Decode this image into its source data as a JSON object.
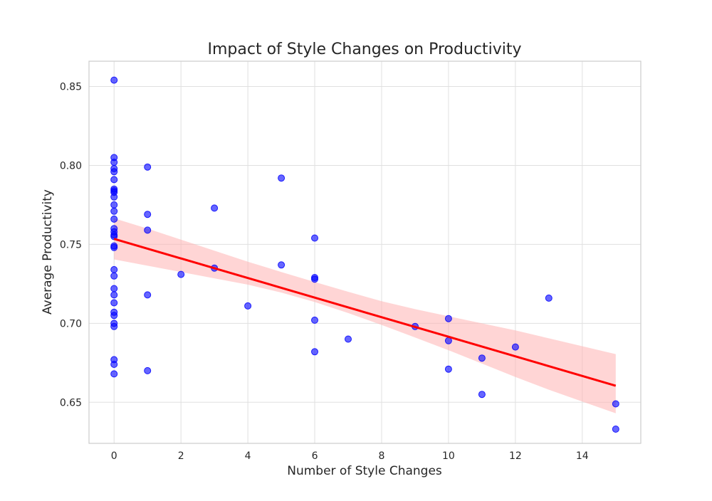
{
  "chart_data": {
    "type": "scatter",
    "title": "Impact of Style Changes on Productivity",
    "xlabel": "Number of Style Changes",
    "ylabel": "Average Productivity",
    "xlim": [
      -0.75,
      15.75
    ],
    "ylim": [
      0.624,
      0.866
    ],
    "xticks": [
      0,
      2,
      4,
      6,
      8,
      10,
      12,
      14
    ],
    "yticks": [
      0.65,
      0.7,
      0.75,
      0.8,
      0.85
    ],
    "xtick_labels": [
      "0",
      "2",
      "4",
      "6",
      "8",
      "10",
      "12",
      "14"
    ],
    "ytick_labels": [
      "0.65",
      "0.70",
      "0.75",
      "0.80",
      "0.85"
    ],
    "grid": true,
    "colors": {
      "points": "#0000ff",
      "regression_line": "#ff0000",
      "confidence_band": "#ffb3b3",
      "grid": "#e0e0e0",
      "axes_border": "#cccccc"
    },
    "points": [
      {
        "x": 0,
        "y": 0.854
      },
      {
        "x": 0,
        "y": 0.805
      },
      {
        "x": 0,
        "y": 0.802
      },
      {
        "x": 0,
        "y": 0.798
      },
      {
        "x": 0,
        "y": 0.796
      },
      {
        "x": 0,
        "y": 0.791
      },
      {
        "x": 0,
        "y": 0.785
      },
      {
        "x": 0,
        "y": 0.784
      },
      {
        "x": 0,
        "y": 0.783
      },
      {
        "x": 0,
        "y": 0.78
      },
      {
        "x": 0,
        "y": 0.775
      },
      {
        "x": 0,
        "y": 0.771
      },
      {
        "x": 0,
        "y": 0.766
      },
      {
        "x": 0,
        "y": 0.76
      },
      {
        "x": 0,
        "y": 0.758
      },
      {
        "x": 0,
        "y": 0.756
      },
      {
        "x": 0,
        "y": 0.755
      },
      {
        "x": 0,
        "y": 0.749
      },
      {
        "x": 0,
        "y": 0.748
      },
      {
        "x": 0,
        "y": 0.734
      },
      {
        "x": 0,
        "y": 0.73
      },
      {
        "x": 0,
        "y": 0.722
      },
      {
        "x": 0,
        "y": 0.718
      },
      {
        "x": 0,
        "y": 0.713
      },
      {
        "x": 0,
        "y": 0.707
      },
      {
        "x": 0,
        "y": 0.705
      },
      {
        "x": 0,
        "y": 0.7
      },
      {
        "x": 0,
        "y": 0.698
      },
      {
        "x": 0,
        "y": 0.677
      },
      {
        "x": 0,
        "y": 0.674
      },
      {
        "x": 0,
        "y": 0.668
      },
      {
        "x": 1,
        "y": 0.799
      },
      {
        "x": 1,
        "y": 0.769
      },
      {
        "x": 1,
        "y": 0.759
      },
      {
        "x": 1,
        "y": 0.718
      },
      {
        "x": 1,
        "y": 0.67
      },
      {
        "x": 2,
        "y": 0.731
      },
      {
        "x": 3,
        "y": 0.773
      },
      {
        "x": 3,
        "y": 0.735
      },
      {
        "x": 4,
        "y": 0.711
      },
      {
        "x": 5,
        "y": 0.792
      },
      {
        "x": 5,
        "y": 0.737
      },
      {
        "x": 6,
        "y": 0.754
      },
      {
        "x": 6,
        "y": 0.729
      },
      {
        "x": 6,
        "y": 0.728
      },
      {
        "x": 6,
        "y": 0.702
      },
      {
        "x": 6,
        "y": 0.682
      },
      {
        "x": 7,
        "y": 0.69
      },
      {
        "x": 9,
        "y": 0.698
      },
      {
        "x": 10,
        "y": 0.703
      },
      {
        "x": 10,
        "y": 0.689
      },
      {
        "x": 10,
        "y": 0.671
      },
      {
        "x": 11,
        "y": 0.678
      },
      {
        "x": 11,
        "y": 0.655
      },
      {
        "x": 12,
        "y": 0.685
      },
      {
        "x": 13,
        "y": 0.716
      },
      {
        "x": 15,
        "y": 0.649
      },
      {
        "x": 15,
        "y": 0.633
      }
    ],
    "regression": {
      "x": [
        0,
        15
      ],
      "y": [
        0.7535,
        0.6605
      ]
    },
    "confidence_band": {
      "x": [
        0,
        1,
        2,
        3,
        4,
        5,
        6,
        7,
        8,
        9,
        10,
        11,
        12,
        13,
        14,
        15
      ],
      "upper": [
        0.7665,
        0.76,
        0.753,
        0.746,
        0.739,
        0.7325,
        0.7262,
        0.72,
        0.714,
        0.709,
        0.7045,
        0.7,
        0.6955,
        0.6905,
        0.6855,
        0.6805
      ],
      "lower": [
        0.7405,
        0.7365,
        0.7325,
        0.7285,
        0.7245,
        0.7195,
        0.7135,
        0.7065,
        0.699,
        0.691,
        0.683,
        0.6745,
        0.666,
        0.658,
        0.6505,
        0.643
      ]
    }
  }
}
